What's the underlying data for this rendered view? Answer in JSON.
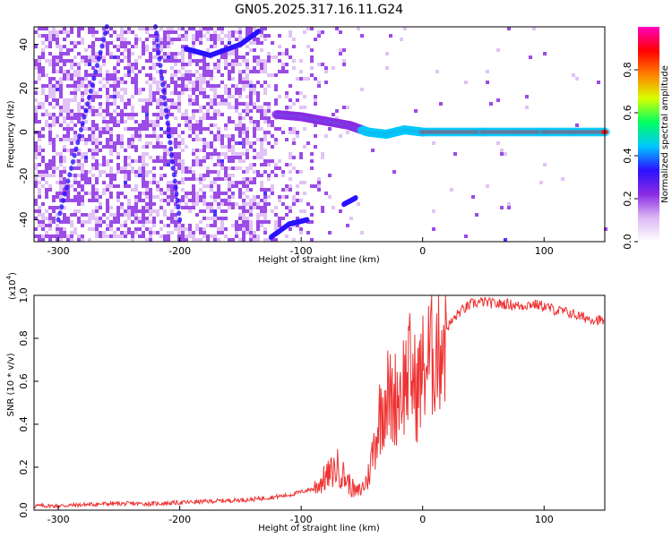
{
  "figure_title": "GN05.2025.317.16.11.G24",
  "chart_data": [
    {
      "type": "heatmap",
      "title": "GN05.2025.317.16.11.G24",
      "xlabel": "Height of straight line (km)",
      "ylabel": "Frequency (Hz)",
      "xlim": [
        -320,
        150
      ],
      "ylim": [
        -50,
        48
      ],
      "xticks": [
        -300,
        -200,
        -100,
        0,
        100
      ],
      "yticks": [
        -40,
        -20,
        0,
        20,
        40
      ],
      "colorbar": {
        "label": "Normalized spectral amplitude",
        "range": [
          0,
          1
        ],
        "ticks": [
          0.0,
          0.2,
          0.4,
          0.6,
          0.8
        ],
        "colors": [
          "#ffffff",
          "#dcb8f5",
          "#8a2be2",
          "#2a10ff",
          "#00c8ff",
          "#00ff60",
          "#d8ff00",
          "#ff8000",
          "#ff0000",
          "#ff00c0"
        ]
      },
      "features": [
        {
          "name": "main-signal-track",
          "points": [
            [
              -120,
              8
            ],
            [
              -100,
              7
            ],
            [
              -80,
              5
            ],
            [
              -60,
              3
            ],
            [
              -45,
              0
            ],
            [
              -30,
              -1
            ],
            [
              -15,
              1
            ],
            [
              0,
              0
            ],
            [
              50,
              0
            ],
            [
              100,
              0
            ],
            [
              150,
              0
            ]
          ]
        },
        {
          "name": "diagonal-streak-a",
          "points": [
            [
              -300,
              -40
            ],
            [
              -260,
              48
            ]
          ]
        },
        {
          "name": "diagonal-streak-b",
          "points": [
            [
              -220,
              48
            ],
            [
              -200,
              -40
            ]
          ]
        },
        {
          "name": "upper-arc",
          "points": [
            [
              -195,
              38
            ],
            [
              -175,
              35
            ],
            [
              -150,
              40
            ],
            [
              -135,
              46
            ]
          ]
        },
        {
          "name": "lower-arc",
          "points": [
            [
              -125,
              -48
            ],
            [
              -110,
              -42
            ],
            [
              -95,
              -40
            ]
          ]
        },
        {
          "name": "small-blob",
          "points": [
            [
              -65,
              -33
            ],
            [
              -55,
              -30
            ]
          ]
        }
      ]
    },
    {
      "type": "line",
      "xlabel": "Height of straight line (km)",
      "ylabel": "SNR (10 * v/v)",
      "y_multiplier": "(x10^4)",
      "y_multiplier_text": "(x10",
      "y_multiplier_exp": "4",
      "xlim": [
        -320,
        150
      ],
      "ylim": [
        0,
        1.0
      ],
      "xticks": [
        -300,
        -200,
        -100,
        0,
        100
      ],
      "yticks": [
        0.0,
        0.2,
        0.4,
        0.6,
        0.8,
        1.0
      ],
      "series": [
        {
          "name": "SNR",
          "color": "#ee3333",
          "x": [
            -320,
            -300,
            -260,
            -220,
            -180,
            -140,
            -110,
            -90,
            -80,
            -70,
            -60,
            -55,
            -50,
            -45,
            -40,
            -35,
            -30,
            -25,
            -20,
            -15,
            -10,
            -5,
            0,
            5,
            10,
            15,
            20,
            30,
            40,
            50,
            60,
            70,
            80,
            90,
            100,
            110,
            120,
            130,
            140,
            150
          ],
          "values": [
            0.02,
            0.02,
            0.03,
            0.03,
            0.04,
            0.05,
            0.07,
            0.1,
            0.15,
            0.2,
            0.12,
            0.08,
            0.1,
            0.15,
            0.3,
            0.45,
            0.55,
            0.5,
            0.55,
            0.6,
            0.65,
            0.55,
            0.65,
            0.7,
            0.75,
            0.8,
            0.85,
            0.92,
            0.96,
            0.97,
            0.96,
            0.96,
            0.95,
            0.96,
            0.95,
            0.93,
            0.92,
            0.9,
            0.89,
            0.88
          ]
        }
      ]
    }
  ]
}
